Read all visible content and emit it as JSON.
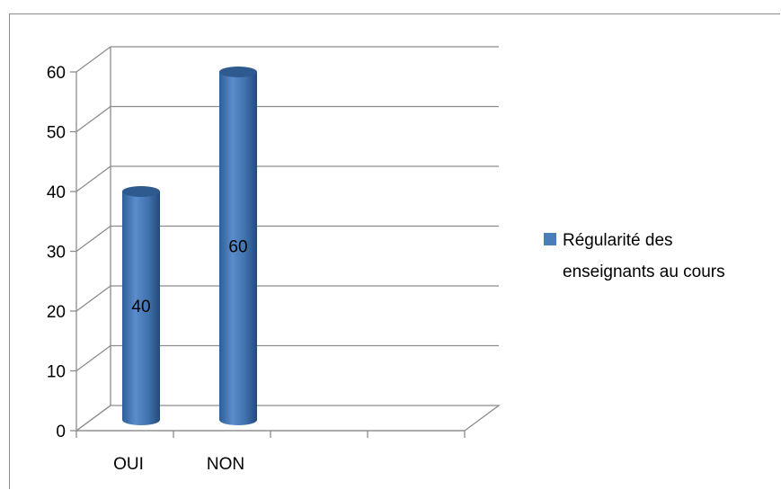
{
  "chart_data": {
    "type": "bar",
    "categories": [
      "OUI",
      "NON"
    ],
    "series": [
      {
        "name": "Régularité des enseignants au cours",
        "values": [
          40,
          60
        ]
      }
    ],
    "ylim": [
      0,
      60
    ],
    "yticks": [
      0,
      10,
      20,
      30,
      40,
      50,
      60
    ],
    "grid": true,
    "legend_position": "right",
    "data_labels": [
      "40",
      "60"
    ],
    "legend_lines": [
      "Régularité des",
      "enseignants au cours"
    ],
    "style": "3d-cylinder",
    "colors": {
      "bar": "#4a7ebb",
      "bar_dark": "#2e5a8f",
      "bar_light": "#7fa6d8",
      "grid": "#8c8c8c"
    }
  }
}
